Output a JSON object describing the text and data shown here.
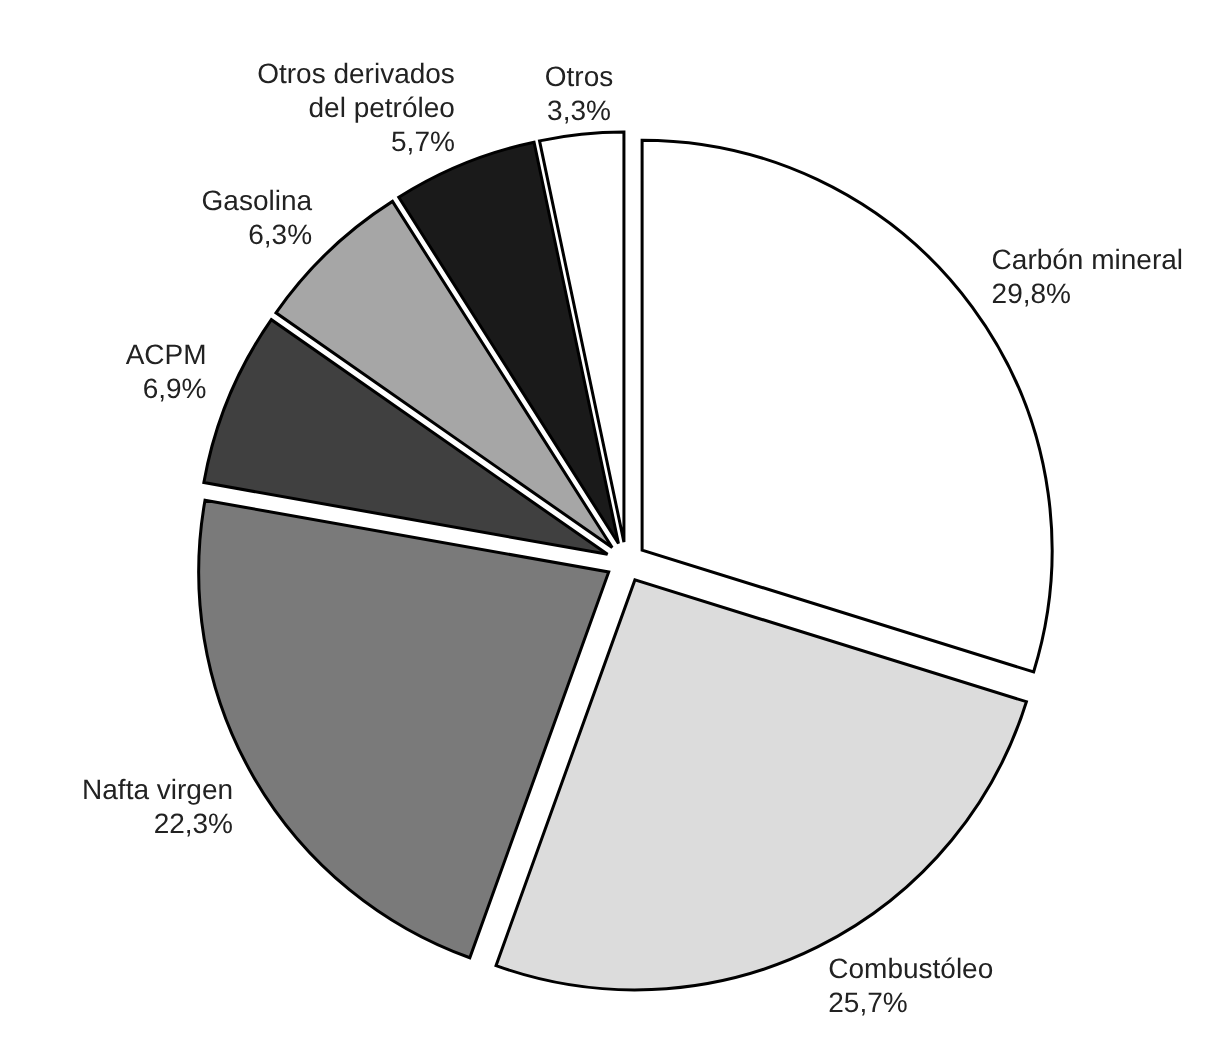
{
  "chart_data": {
    "type": "pie",
    "categories": [
      "Carbón mineral",
      "Combustóleo",
      "Nafta virgen",
      "ACPM",
      "Gasolina",
      "Otros derivados del petróleo",
      "Otros"
    ],
    "values": [
      29.8,
      25.7,
      22.3,
      6.9,
      6.3,
      5.7,
      3.3
    ],
    "colors": [
      "#ffffff",
      "#dcdcdc",
      "#7a7a7a",
      "#404040",
      "#a6a6a6",
      "#1a1a1a",
      "#ffffff"
    ],
    "value_labels": [
      "29,8%",
      "25,7%",
      "22,3%",
      "6,9%",
      "6,3%",
      "5,7%",
      "3,3%"
    ]
  }
}
